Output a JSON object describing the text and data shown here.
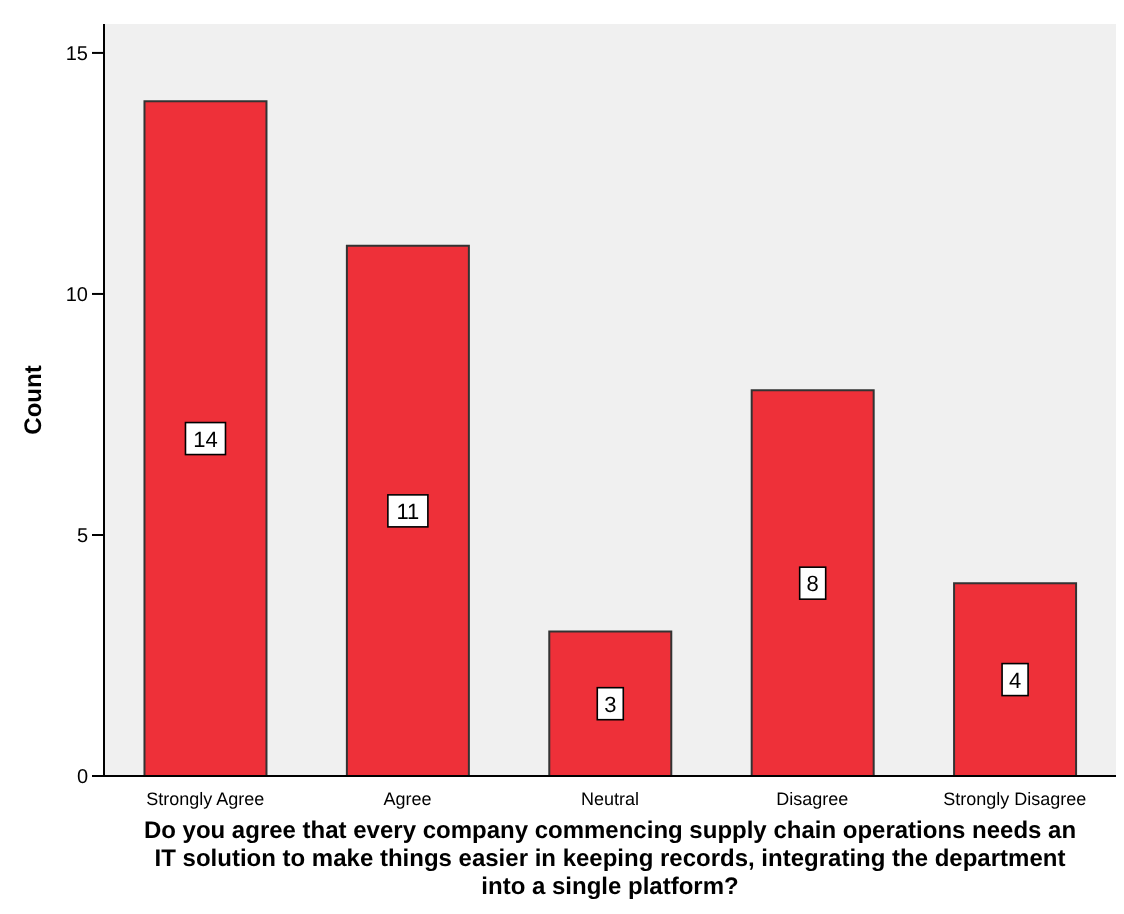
{
  "chart_data": {
    "type": "bar",
    "xlabel": "Do you agree that every company commencing supply chain operations needs an IT solution to make things easier in keeping records, integrating the department into a single platform?",
    "ylabel": "Count",
    "categories": [
      "Strongly Agree",
      "Agree",
      "Neutral",
      "Disagree",
      "Strongly Disagree"
    ],
    "values": [
      14,
      11,
      3,
      8,
      4
    ],
    "color": "#ee3039",
    "ylim": [
      0,
      15.6
    ],
    "yticks": [
      0,
      5,
      10,
      15
    ],
    "grid": false,
    "legend": false,
    "data_labels": true
  }
}
